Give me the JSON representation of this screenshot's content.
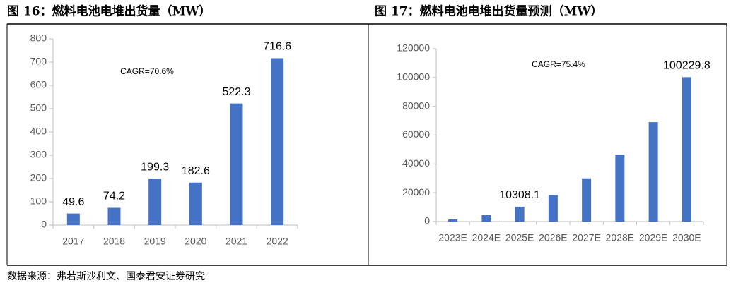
{
  "chart_data": [
    {
      "type": "bar",
      "title": "图 16：燃料电池电堆出货量（MW）",
      "categories": [
        "2017",
        "2018",
        "2019",
        "2020",
        "2021",
        "2022"
      ],
      "values": [
        49.6,
        74.2,
        199.3,
        182.6,
        522.3,
        716.6
      ],
      "data_labels": true,
      "color": "#4472c4",
      "ylim": [
        0,
        800
      ],
      "yticks": [
        0,
        100,
        200,
        300,
        400,
        500,
        600,
        700,
        800
      ],
      "annotation": "CAGR=70.6%"
    },
    {
      "type": "bar",
      "title": "图 17：燃料电池电堆出货量预测（MW）",
      "categories": [
        "2023E",
        "2024E",
        "2025E",
        "2026E",
        "2027E",
        "2028E",
        "2029E",
        "2030E"
      ],
      "values": [
        1500,
        4500,
        10308.1,
        18500,
        30000,
        46500,
        69000,
        100229.8
      ],
      "value_labels": [
        null,
        null,
        "10308.1",
        null,
        null,
        null,
        null,
        "100229.8"
      ],
      "color": "#4472c4",
      "ylim": [
        0,
        120000
      ],
      "yticks": [
        0,
        20000,
        40000,
        60000,
        80000,
        100000,
        120000
      ],
      "annotation": "CAGR=75.4%"
    }
  ],
  "source": "数据来源：弗若斯沙利文、国泰君安证券研究"
}
